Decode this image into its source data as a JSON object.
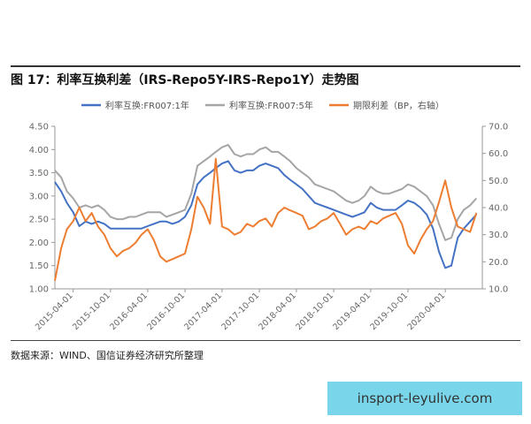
{
  "figure_title": "图 17：利率互换利差（IRS-Repo5Y-IRS-Repo1Y）走势图",
  "source_note": "数据来源：WIND、国信证券经济研究所整理",
  "watermark": "insport-leyulive.com",
  "chart_data": {
    "type": "line",
    "title": "",
    "x_tick_labels": [
      "2015-04-01",
      "2015-10-01",
      "2016-04-01",
      "2016-10-01",
      "2017-04-01",
      "2017-10-01",
      "2018-04-01",
      "2018-10-01",
      "2019-04-01",
      "2019-10-01",
      "2020-04-01"
    ],
    "y_left": {
      "range": [
        1.0,
        4.5
      ],
      "ticks": [
        "1.00",
        "1.50",
        "2.00",
        "2.50",
        "3.00",
        "3.50",
        "4.00",
        "4.50"
      ]
    },
    "y_right": {
      "range": [
        10.0,
        70.0
      ],
      "ticks": [
        "10.0",
        "20.0",
        "30.0",
        "40.0",
        "50.0",
        "60.0",
        "70.0"
      ]
    },
    "grid": false,
    "legend_position": "top",
    "series": [
      {
        "name": "利率互换:FR007:1年",
        "axis": "left",
        "color": "#4472C4",
        "points": [
          [
            "2015-01-01",
            3.3
          ],
          [
            "2015-02-01",
            3.1
          ],
          [
            "2015-03-01",
            2.85
          ],
          [
            "2015-04-01",
            2.65
          ],
          [
            "2015-05-01",
            2.35
          ],
          [
            "2015-06-01",
            2.45
          ],
          [
            "2015-07-01",
            2.4
          ],
          [
            "2015-08-01",
            2.45
          ],
          [
            "2015-09-01",
            2.4
          ],
          [
            "2015-10-01",
            2.3
          ],
          [
            "2015-11-01",
            2.3
          ],
          [
            "2015-12-01",
            2.3
          ],
          [
            "2016-01-01",
            2.3
          ],
          [
            "2016-02-01",
            2.3
          ],
          [
            "2016-03-01",
            2.3
          ],
          [
            "2016-04-01",
            2.35
          ],
          [
            "2016-05-01",
            2.4
          ],
          [
            "2016-06-01",
            2.45
          ],
          [
            "2016-07-01",
            2.45
          ],
          [
            "2016-08-01",
            2.4
          ],
          [
            "2016-09-01",
            2.45
          ],
          [
            "2016-10-01",
            2.55
          ],
          [
            "2016-11-01",
            2.8
          ],
          [
            "2016-12-01",
            3.25
          ],
          [
            "2017-01-01",
            3.4
          ],
          [
            "2017-02-01",
            3.5
          ],
          [
            "2017-03-01",
            3.6
          ],
          [
            "2017-04-01",
            3.7
          ],
          [
            "2017-05-01",
            3.75
          ],
          [
            "2017-06-01",
            3.55
          ],
          [
            "2017-07-01",
            3.5
          ],
          [
            "2017-08-01",
            3.55
          ],
          [
            "2017-09-01",
            3.55
          ],
          [
            "2017-10-01",
            3.65
          ],
          [
            "2017-11-01",
            3.7
          ],
          [
            "2017-12-01",
            3.65
          ],
          [
            "2018-01-01",
            3.6
          ],
          [
            "2018-02-01",
            3.45
          ],
          [
            "2018-03-01",
            3.35
          ],
          [
            "2018-04-01",
            3.25
          ],
          [
            "2018-05-01",
            3.15
          ],
          [
            "2018-06-01",
            3.0
          ],
          [
            "2018-07-01",
            2.85
          ],
          [
            "2018-08-01",
            2.8
          ],
          [
            "2018-09-01",
            2.75
          ],
          [
            "2018-10-01",
            2.7
          ],
          [
            "2018-11-01",
            2.65
          ],
          [
            "2018-12-01",
            2.6
          ],
          [
            "2019-01-01",
            2.55
          ],
          [
            "2019-02-01",
            2.6
          ],
          [
            "2019-03-01",
            2.65
          ],
          [
            "2019-04-01",
            2.85
          ],
          [
            "2019-05-01",
            2.75
          ],
          [
            "2019-06-01",
            2.7
          ],
          [
            "2019-07-01",
            2.7
          ],
          [
            "2019-08-01",
            2.7
          ],
          [
            "2019-09-01",
            2.8
          ],
          [
            "2019-10-01",
            2.9
          ],
          [
            "2019-11-01",
            2.85
          ],
          [
            "2019-12-01",
            2.75
          ],
          [
            "2020-01-01",
            2.6
          ],
          [
            "2020-02-01",
            2.3
          ],
          [
            "2020-03-01",
            1.8
          ],
          [
            "2020-04-01",
            1.45
          ],
          [
            "2020-05-01",
            1.5
          ],
          [
            "2020-06-01",
            2.1
          ],
          [
            "2020-07-01",
            2.3
          ],
          [
            "2020-08-01",
            2.45
          ],
          [
            "2020-09-01",
            2.6
          ]
        ]
      },
      {
        "name": "利率互换:FR007:5年",
        "axis": "left",
        "color": "#A5A5A5",
        "points": [
          [
            "2015-01-01",
            3.55
          ],
          [
            "2015-02-01",
            3.4
          ],
          [
            "2015-03-01",
            3.1
          ],
          [
            "2015-04-01",
            2.95
          ],
          [
            "2015-05-01",
            2.75
          ],
          [
            "2015-06-01",
            2.8
          ],
          [
            "2015-07-01",
            2.75
          ],
          [
            "2015-08-01",
            2.8
          ],
          [
            "2015-09-01",
            2.7
          ],
          [
            "2015-10-01",
            2.55
          ],
          [
            "2015-11-01",
            2.5
          ],
          [
            "2015-12-01",
            2.5
          ],
          [
            "2016-01-01",
            2.55
          ],
          [
            "2016-02-01",
            2.55
          ],
          [
            "2016-03-01",
            2.6
          ],
          [
            "2016-04-01",
            2.65
          ],
          [
            "2016-05-01",
            2.65
          ],
          [
            "2016-06-01",
            2.65
          ],
          [
            "2016-07-01",
            2.55
          ],
          [
            "2016-08-01",
            2.6
          ],
          [
            "2016-09-01",
            2.65
          ],
          [
            "2016-10-01",
            2.7
          ],
          [
            "2016-11-01",
            3.05
          ],
          [
            "2016-12-01",
            3.65
          ],
          [
            "2017-01-01",
            3.75
          ],
          [
            "2017-02-01",
            3.85
          ],
          [
            "2017-03-01",
            3.95
          ],
          [
            "2017-04-01",
            4.05
          ],
          [
            "2017-05-01",
            4.1
          ],
          [
            "2017-06-01",
            3.9
          ],
          [
            "2017-07-01",
            3.85
          ],
          [
            "2017-08-01",
            3.9
          ],
          [
            "2017-09-01",
            3.9
          ],
          [
            "2017-10-01",
            4.0
          ],
          [
            "2017-11-01",
            4.05
          ],
          [
            "2017-12-01",
            3.95
          ],
          [
            "2018-01-01",
            3.95
          ],
          [
            "2018-02-01",
            3.85
          ],
          [
            "2018-03-01",
            3.75
          ],
          [
            "2018-04-01",
            3.6
          ],
          [
            "2018-05-01",
            3.5
          ],
          [
            "2018-06-01",
            3.4
          ],
          [
            "2018-07-01",
            3.25
          ],
          [
            "2018-08-01",
            3.2
          ],
          [
            "2018-09-01",
            3.15
          ],
          [
            "2018-10-01",
            3.1
          ],
          [
            "2018-11-01",
            3.0
          ],
          [
            "2018-12-01",
            2.9
          ],
          [
            "2019-01-01",
            2.85
          ],
          [
            "2019-02-01",
            2.9
          ],
          [
            "2019-03-01",
            3.0
          ],
          [
            "2019-04-01",
            3.2
          ],
          [
            "2019-05-01",
            3.1
          ],
          [
            "2019-06-01",
            3.05
          ],
          [
            "2019-07-01",
            3.05
          ],
          [
            "2019-08-01",
            3.1
          ],
          [
            "2019-09-01",
            3.15
          ],
          [
            "2019-10-01",
            3.25
          ],
          [
            "2019-11-01",
            3.2
          ],
          [
            "2019-12-01",
            3.1
          ],
          [
            "2020-01-01",
            3.0
          ],
          [
            "2020-02-01",
            2.8
          ],
          [
            "2020-03-01",
            2.4
          ],
          [
            "2020-04-01",
            2.05
          ],
          [
            "2020-05-01",
            2.1
          ],
          [
            "2020-06-01",
            2.5
          ],
          [
            "2020-07-01",
            2.7
          ],
          [
            "2020-08-01",
            2.8
          ],
          [
            "2020-09-01",
            2.95
          ]
        ]
      },
      {
        "name": "期限利差（BP，右轴）",
        "axis": "right",
        "color": "#ED7D31",
        "points": [
          [
            "2015-01-01",
            13
          ],
          [
            "2015-02-01",
            25
          ],
          [
            "2015-03-01",
            32
          ],
          [
            "2015-04-01",
            35
          ],
          [
            "2015-05-01",
            40
          ],
          [
            "2015-06-01",
            35
          ],
          [
            "2015-07-01",
            38
          ],
          [
            "2015-08-01",
            33
          ],
          [
            "2015-09-01",
            30
          ],
          [
            "2015-10-01",
            25
          ],
          [
            "2015-11-01",
            22
          ],
          [
            "2015-12-01",
            24
          ],
          [
            "2016-01-01",
            25
          ],
          [
            "2016-02-01",
            27
          ],
          [
            "2016-03-01",
            30
          ],
          [
            "2016-04-01",
            32
          ],
          [
            "2016-05-01",
            28
          ],
          [
            "2016-06-01",
            22
          ],
          [
            "2016-07-01",
            20
          ],
          [
            "2016-08-01",
            21
          ],
          [
            "2016-09-01",
            22
          ],
          [
            "2016-10-01",
            23
          ],
          [
            "2016-11-01",
            32
          ],
          [
            "2016-12-01",
            44
          ],
          [
            "2017-01-01",
            40
          ],
          [
            "2017-02-01",
            34
          ],
          [
            "2017-03-01",
            58
          ],
          [
            "2017-04-01",
            33
          ],
          [
            "2017-05-01",
            32
          ],
          [
            "2017-06-01",
            30
          ],
          [
            "2017-07-01",
            31
          ],
          [
            "2017-08-01",
            34
          ],
          [
            "2017-09-01",
            33
          ],
          [
            "2017-10-01",
            35
          ],
          [
            "2017-11-01",
            36
          ],
          [
            "2017-12-01",
            33
          ],
          [
            "2018-01-01",
            38
          ],
          [
            "2018-02-01",
            40
          ],
          [
            "2018-03-01",
            39
          ],
          [
            "2018-04-01",
            38
          ],
          [
            "2018-05-01",
            37
          ],
          [
            "2018-06-01",
            32
          ],
          [
            "2018-07-01",
            33
          ],
          [
            "2018-08-01",
            35
          ],
          [
            "2018-09-01",
            36
          ],
          [
            "2018-10-01",
            38
          ],
          [
            "2018-11-01",
            34
          ],
          [
            "2018-12-01",
            30
          ],
          [
            "2019-01-01",
            32
          ],
          [
            "2019-02-01",
            33
          ],
          [
            "2019-03-01",
            32
          ],
          [
            "2019-04-01",
            35
          ],
          [
            "2019-05-01",
            34
          ],
          [
            "2019-06-01",
            36
          ],
          [
            "2019-07-01",
            37
          ],
          [
            "2019-08-01",
            38
          ],
          [
            "2019-09-01",
            34
          ],
          [
            "2019-10-01",
            26
          ],
          [
            "2019-11-01",
            23
          ],
          [
            "2019-12-01",
            28
          ],
          [
            "2020-01-01",
            32
          ],
          [
            "2020-02-01",
            35
          ],
          [
            "2020-03-01",
            42
          ],
          [
            "2020-04-01",
            50
          ],
          [
            "2020-05-01",
            40
          ],
          [
            "2020-06-01",
            33
          ],
          [
            "2020-07-01",
            32
          ],
          [
            "2020-08-01",
            31
          ],
          [
            "2020-09-01",
            38
          ]
        ]
      }
    ]
  }
}
